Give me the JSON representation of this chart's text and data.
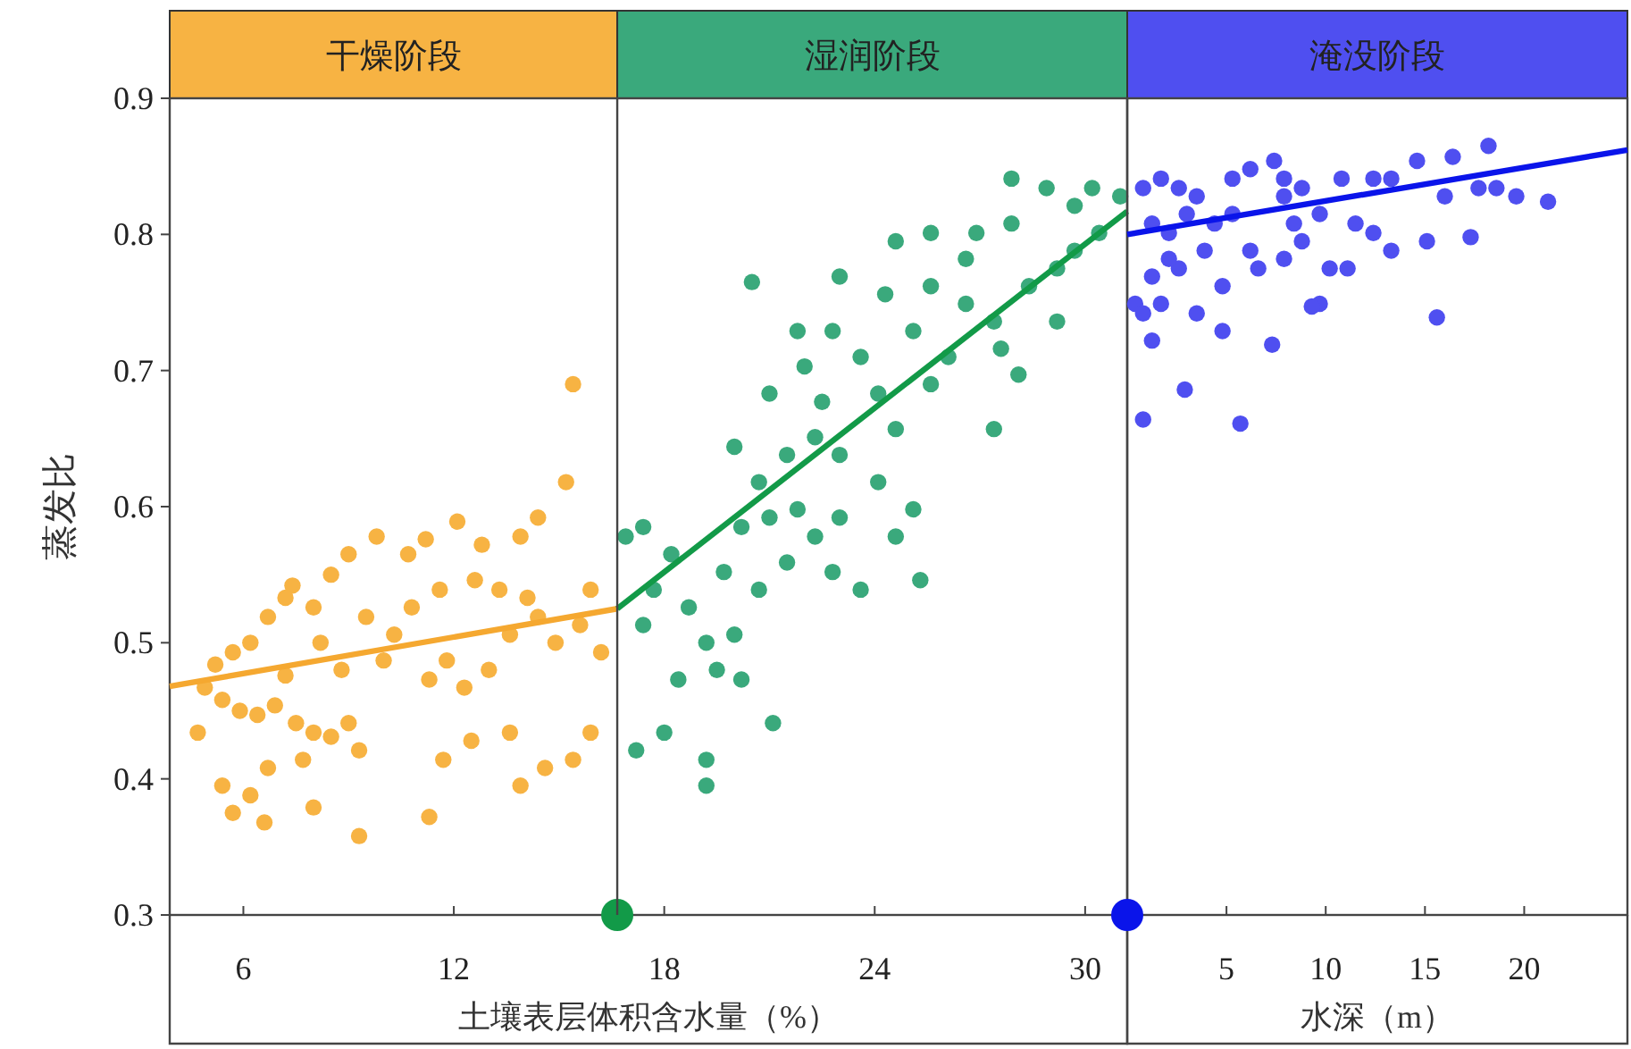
{
  "chart_data": [
    {
      "type": "scatter",
      "ylabel": "蒸发比",
      "xlabel": "土壤表层体积含水量（%）",
      "xlim": [
        3.9,
        31.2
      ],
      "ylim": [
        0.3,
        0.9
      ],
      "xticks": [
        6,
        12,
        18,
        24,
        30
      ],
      "yticks": [
        0.3,
        0.4,
        0.5,
        0.6,
        0.7,
        0.8,
        0.9
      ],
      "grid": false,
      "annotations": [
        "干燥阶段",
        "湿润阶段"
      ],
      "ref_lines": [
        {
          "axis": "x",
          "value": 16.66
        }
      ],
      "series": [
        {
          "type": "scatter",
          "marker": "circle",
          "color": "#f7b343",
          "x": [
            15.4,
            15.2,
            14.4,
            13.9,
            12.8,
            12.1,
            11.2,
            10.7,
            9.8,
            9.0,
            8.5,
            7.4,
            7.2,
            8.0,
            6.7,
            6.2,
            5.7,
            5.2,
            4.9,
            5.4,
            5.9,
            6.4,
            6.9,
            7.5,
            8.0,
            8.5,
            9.0,
            9.3,
            7.7,
            6.7,
            5.4,
            6.2,
            5.7,
            6.6,
            8.0,
            9.3,
            11.3,
            11.7,
            12.5,
            13.6,
            13.9,
            14.6,
            15.4,
            15.9,
            11.3,
            11.8,
            12.3,
            13.0,
            13.6,
            14.4,
            14.9,
            15.6,
            16.2,
            10.3,
            10.0,
            9.5,
            10.8,
            11.6,
            12.6,
            13.3,
            14.1,
            8.2,
            8.8,
            7.2,
            4.7,
            15.9
          ],
          "values": [
            0.69,
            0.618,
            0.592,
            0.578,
            0.572,
            0.589,
            0.576,
            0.565,
            0.578,
            0.565,
            0.55,
            0.542,
            0.533,
            0.526,
            0.519,
            0.5,
            0.493,
            0.484,
            0.467,
            0.458,
            0.45,
            0.447,
            0.454,
            0.441,
            0.434,
            0.431,
            0.441,
            0.421,
            0.414,
            0.408,
            0.395,
            0.388,
            0.375,
            0.368,
            0.379,
            0.358,
            0.372,
            0.414,
            0.428,
            0.434,
            0.395,
            0.408,
            0.414,
            0.434,
            0.473,
            0.487,
            0.467,
            0.48,
            0.506,
            0.519,
            0.5,
            0.513,
            0.493,
            0.506,
            0.487,
            0.519,
            0.526,
            0.539,
            0.546,
            0.539,
            0.533,
            0.5,
            0.48,
            0.476,
            0.434,
            0.539
          ]
        },
        {
          "type": "scatter",
          "marker": "circle",
          "color": "#3aa97c",
          "x": [
            16.9,
            17.4,
            18.2,
            17.7,
            18.7,
            19.2,
            18.4,
            17.4,
            17.2,
            18.0,
            19.2,
            19.2,
            21.1,
            19.5,
            20.0,
            20.2,
            20.7,
            21.5,
            19.7,
            20.2,
            21.0,
            21.8,
            22.3,
            22.8,
            23.6,
            23.0,
            24.1,
            25.1,
            25.3,
            24.6,
            20.7,
            21.5,
            22.3,
            23.0,
            22.5,
            22.0,
            21.8,
            22.8,
            23.6,
            24.1,
            24.6,
            25.6,
            26.1,
            25.1,
            24.3,
            25.6,
            26.6,
            27.4,
            27.6,
            27.4,
            28.1,
            28.4,
            29.2,
            29.7,
            30.4,
            29.7,
            28.9,
            30.2,
            31.0,
            27.9,
            26.9,
            25.6,
            26.6,
            29.2,
            20.5,
            23.0,
            24.6,
            27.9,
            21.0,
            20.0
          ],
          "values": [
            0.578,
            0.585,
            0.565,
            0.539,
            0.526,
            0.5,
            0.473,
            0.513,
            0.421,
            0.434,
            0.414,
            0.395,
            0.441,
            0.48,
            0.506,
            0.473,
            0.539,
            0.559,
            0.552,
            0.585,
            0.592,
            0.598,
            0.578,
            0.552,
            0.539,
            0.592,
            0.618,
            0.598,
            0.546,
            0.578,
            0.618,
            0.638,
            0.651,
            0.638,
            0.677,
            0.703,
            0.729,
            0.729,
            0.71,
            0.683,
            0.657,
            0.69,
            0.71,
            0.729,
            0.756,
            0.762,
            0.749,
            0.736,
            0.716,
            0.657,
            0.697,
            0.762,
            0.775,
            0.788,
            0.801,
            0.821,
            0.834,
            0.834,
            0.828,
            0.808,
            0.801,
            0.801,
            0.782,
            0.736,
            0.765,
            0.769,
            0.795,
            0.841,
            0.683,
            0.644
          ]
        },
        {
          "type": "line",
          "marker": "none",
          "color": "#f5a830",
          "x": [
            3.9,
            16.66
          ],
          "values": [
            0.468,
            0.525
          ]
        },
        {
          "type": "line",
          "marker": "none",
          "color": "#129a48",
          "x": [
            16.66,
            31.2
          ],
          "values": [
            0.525,
            0.817
          ]
        },
        {
          "type": "scatter",
          "marker": "circle",
          "color": "#129a48",
          "x": [
            16.66
          ],
          "values": [
            0.3
          ]
        }
      ]
    },
    {
      "type": "scatter",
      "xlabel": "水深（m）",
      "xlim": [
        0,
        25.2
      ],
      "ylim": [
        0.3,
        0.9
      ],
      "xticks": [
        5,
        10,
        15,
        20
      ],
      "yticks": [
        0.3,
        0.4,
        0.5,
        0.6,
        0.7,
        0.8,
        0.9
      ],
      "tick_labels": "x",
      "grid": false,
      "annotations": [
        "淹没阶段"
      ],
      "series": [
        {
          "type": "scatter",
          "marker": "circle",
          "color": "#4f4ff0",
          "x": [
            0.8,
            1.7,
            2.6,
            3.5,
            1.25,
            2.1,
            3.0,
            4.4,
            5.3,
            6.2,
            7.4,
            7.9,
            8.8,
            9.7,
            10.8,
            12.4,
            13.3,
            14.6,
            16.4,
            18.2,
            18.6,
            19.6,
            21.2,
            17.7,
            16.0,
            15.1,
            15.6,
            17.3,
            13.3,
            12.4,
            11.1,
            10.2,
            9.7,
            7.9,
            6.6,
            6.2,
            4.8,
            2.6,
            1.25,
            0.4,
            0.8,
            1.7,
            3.5,
            4.8,
            7.3,
            9.3,
            5.7,
            2.9,
            0.8,
            1.25,
            7.9,
            5.3,
            8.4,
            11.5,
            3.9,
            2.1,
            8.8
          ],
          "values": [
            0.834,
            0.841,
            0.834,
            0.828,
            0.808,
            0.801,
            0.815,
            0.808,
            0.815,
            0.848,
            0.854,
            0.828,
            0.834,
            0.815,
            0.841,
            0.841,
            0.841,
            0.854,
            0.857,
            0.865,
            0.834,
            0.828,
            0.824,
            0.834,
            0.828,
            0.795,
            0.739,
            0.798,
            0.788,
            0.801,
            0.775,
            0.775,
            0.749,
            0.782,
            0.775,
            0.788,
            0.762,
            0.775,
            0.769,
            0.749,
            0.742,
            0.749,
            0.742,
            0.729,
            0.719,
            0.747,
            0.661,
            0.686,
            0.664,
            0.722,
            0.841,
            0.841,
            0.808,
            0.808,
            0.788,
            0.782,
            0.795
          ]
        },
        {
          "type": "line",
          "marker": "none",
          "color": "#0a14ea",
          "x": [
            0,
            25.2
          ],
          "values": [
            0.8,
            0.862
          ]
        },
        {
          "type": "scatter",
          "marker": "circle",
          "color": "#0a14ea",
          "x": [
            0
          ],
          "values": [
            0.3
          ]
        }
      ]
    }
  ]
}
